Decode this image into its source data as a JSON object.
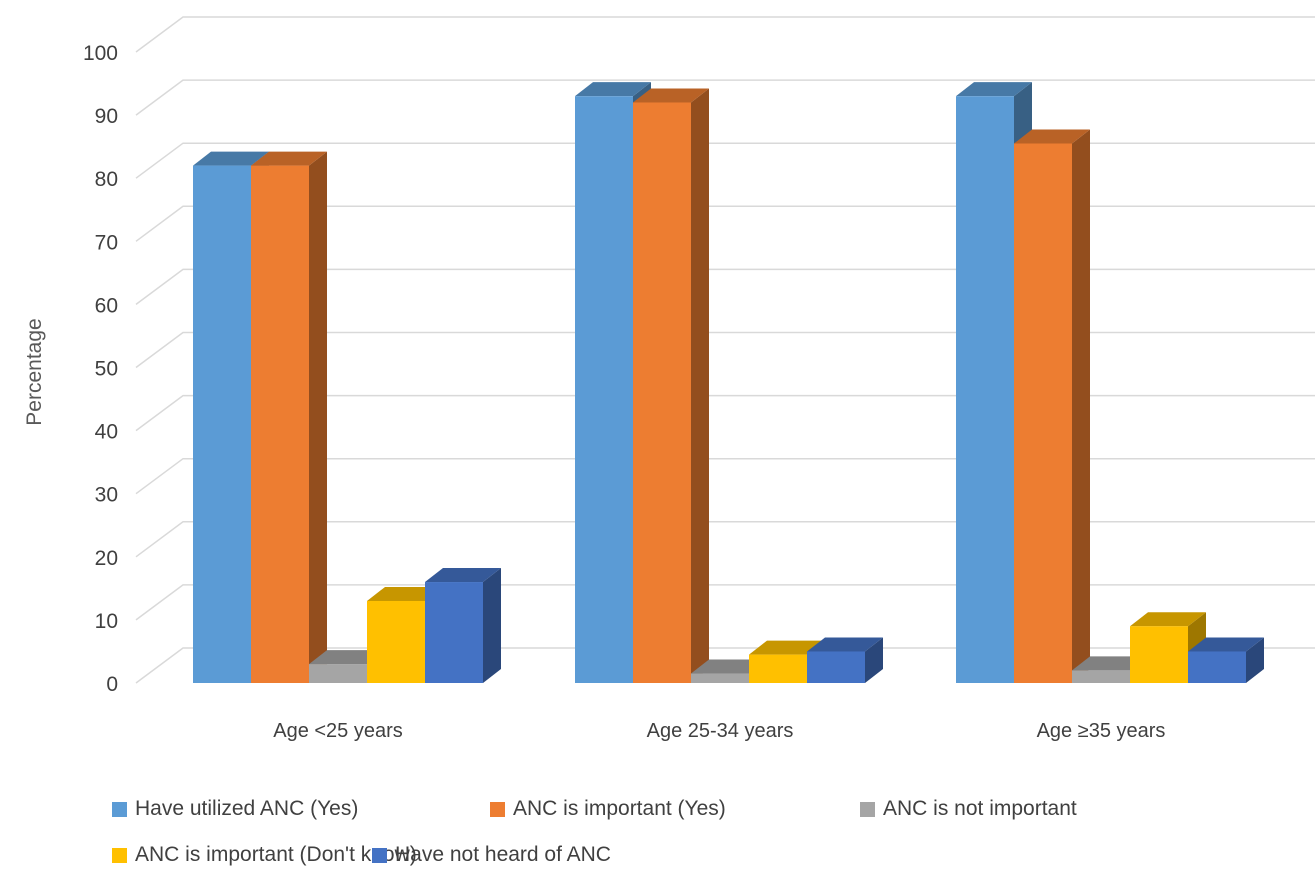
{
  "chart_data": {
    "type": "bar",
    "style": "3d-clustered",
    "ylabel": "Percentage",
    "xlabel": "",
    "ylim": [
      0,
      100
    ],
    "yticks": [
      0,
      10,
      20,
      30,
      40,
      50,
      60,
      70,
      80,
      90,
      100
    ],
    "grid": true,
    "legend_position": "bottom",
    "categories": [
      "Age <25 years",
      "Age 25-34 years",
      "Age  ≥35 years"
    ],
    "series": [
      {
        "name": "Have utilized ANC (Yes)",
        "color": "#5B9BD5",
        "values": [
          82,
          93,
          93
        ]
      },
      {
        "name": "ANC is important (Yes)",
        "color": "#ED7D31",
        "values": [
          82,
          92,
          85.5
        ]
      },
      {
        "name": "ANC is not important",
        "color": "#A5A5A5",
        "values": [
          3,
          1.5,
          2
        ]
      },
      {
        "name": "ANC is important (Don't know)",
        "color": "#FFC000",
        "values": [
          13,
          4.5,
          9
        ]
      },
      {
        "name": "Have not heard of ANC",
        "color": "#4472C4",
        "values": [
          16,
          5,
          5
        ]
      }
    ]
  }
}
